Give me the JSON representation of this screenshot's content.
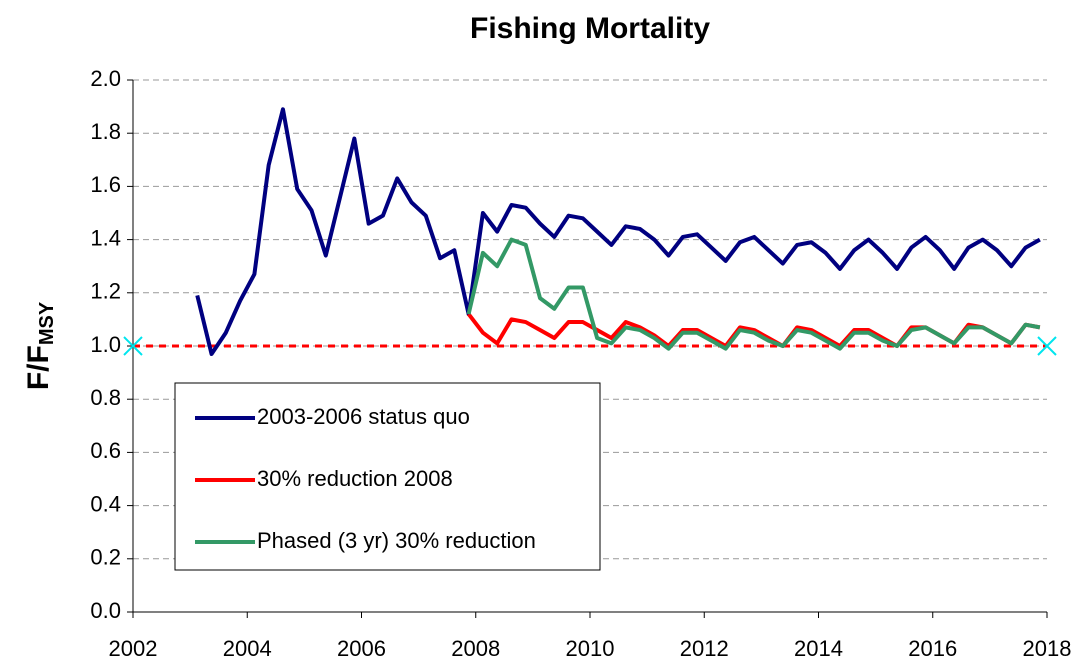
{
  "chart_data": {
    "type": "line",
    "title": "Fishing Mortality",
    "y_label": "F/F",
    "y_label_sub": "MSY",
    "x": [
      2003.125,
      2003.375,
      2003.625,
      2003.875,
      2004.125,
      2004.375,
      2004.625,
      2004.875,
      2005.125,
      2005.375,
      2005.625,
      2005.875,
      2006.125,
      2006.375,
      2006.625,
      2006.875,
      2007.125,
      2007.375,
      2007.625,
      2007.875,
      2008.125,
      2008.375,
      2008.625,
      2008.875,
      2009.125,
      2009.375,
      2009.625,
      2009.875,
      2010.125,
      2010.375,
      2010.625,
      2010.875,
      2011.125,
      2011.375,
      2011.625,
      2011.875,
      2012.125,
      2012.375,
      2012.625,
      2012.875,
      2013.125,
      2013.375,
      2013.625,
      2013.875,
      2014.125,
      2014.375,
      2014.625,
      2014.875,
      2015.125,
      2015.375,
      2015.625,
      2015.875,
      2016.125,
      2016.375,
      2016.625,
      2016.875,
      2017.125,
      2017.375,
      2017.625,
      2017.875
    ],
    "series": [
      {
        "name": "2003-2006 status quo",
        "color": "#000080",
        "values": [
          1.19,
          0.97,
          1.05,
          1.17,
          1.27,
          1.68,
          1.89,
          1.59,
          1.51,
          1.34,
          1.56,
          1.78,
          1.46,
          1.49,
          1.63,
          1.54,
          1.49,
          1.33,
          1.36,
          1.12,
          1.5,
          1.43,
          1.53,
          1.52,
          1.46,
          1.41,
          1.49,
          1.48,
          1.43,
          1.38,
          1.45,
          1.44,
          1.4,
          1.34,
          1.41,
          1.42,
          1.37,
          1.32,
          1.39,
          1.41,
          1.36,
          1.31,
          1.38,
          1.39,
          1.35,
          1.29,
          1.36,
          1.4,
          1.35,
          1.29,
          1.37,
          1.41,
          1.36,
          1.29,
          1.37,
          1.4,
          1.36,
          1.3,
          1.37,
          1.4
        ]
      },
      {
        "name": "30% reduction 2008",
        "color": "#ff0000",
        "values": [
          null,
          null,
          null,
          null,
          null,
          null,
          null,
          null,
          null,
          null,
          null,
          null,
          null,
          null,
          null,
          null,
          null,
          null,
          null,
          1.12,
          1.05,
          1.01,
          1.1,
          1.09,
          1.06,
          1.03,
          1.09,
          1.09,
          1.06,
          1.03,
          1.09,
          1.07,
          1.04,
          1.0,
          1.06,
          1.06,
          1.03,
          1.0,
          1.07,
          1.06,
          1.03,
          1.0,
          1.07,
          1.06,
          1.03,
          1.0,
          1.06,
          1.06,
          1.03,
          1.0,
          1.07,
          1.07,
          1.04,
          1.01,
          1.08,
          1.07,
          1.04,
          1.01,
          1.08,
          1.07
        ]
      },
      {
        "name": "Phased (3 yr) 30% reduction",
        "color": "#339966",
        "values": [
          null,
          null,
          null,
          null,
          null,
          null,
          null,
          null,
          null,
          null,
          null,
          null,
          null,
          null,
          null,
          null,
          null,
          null,
          null,
          1.12,
          1.35,
          1.3,
          1.4,
          1.38,
          1.18,
          1.14,
          1.22,
          1.22,
          1.03,
          1.01,
          1.07,
          1.06,
          1.03,
          0.99,
          1.05,
          1.05,
          1.02,
          0.99,
          1.06,
          1.05,
          1.02,
          1.0,
          1.06,
          1.05,
          1.02,
          0.99,
          1.05,
          1.05,
          1.02,
          1.0,
          1.06,
          1.07,
          1.04,
          1.01,
          1.07,
          1.07,
          1.04,
          1.01,
          1.08,
          1.07
        ]
      }
    ],
    "reference": {
      "y": 1.0,
      "x": [
        2002,
        2018
      ],
      "color": "#ff0000",
      "marker_color": "#00e5ee"
    },
    "xlim": [
      2002,
      2018
    ],
    "xticks": [
      2002,
      2004,
      2006,
      2008,
      2010,
      2012,
      2014,
      2016,
      2018
    ],
    "ylim": [
      0,
      2
    ],
    "yticks": [
      {
        "value": 0,
        "label": "0.0"
      },
      0.2,
      0.4,
      0.6,
      0.8,
      {
        "value": 1,
        "label": "1.0"
      },
      1.2,
      1.4,
      1.6,
      1.8,
      {
        "value": 2,
        "label": "2.0"
      }
    ],
    "grid": true,
    "legend": "lower left"
  }
}
